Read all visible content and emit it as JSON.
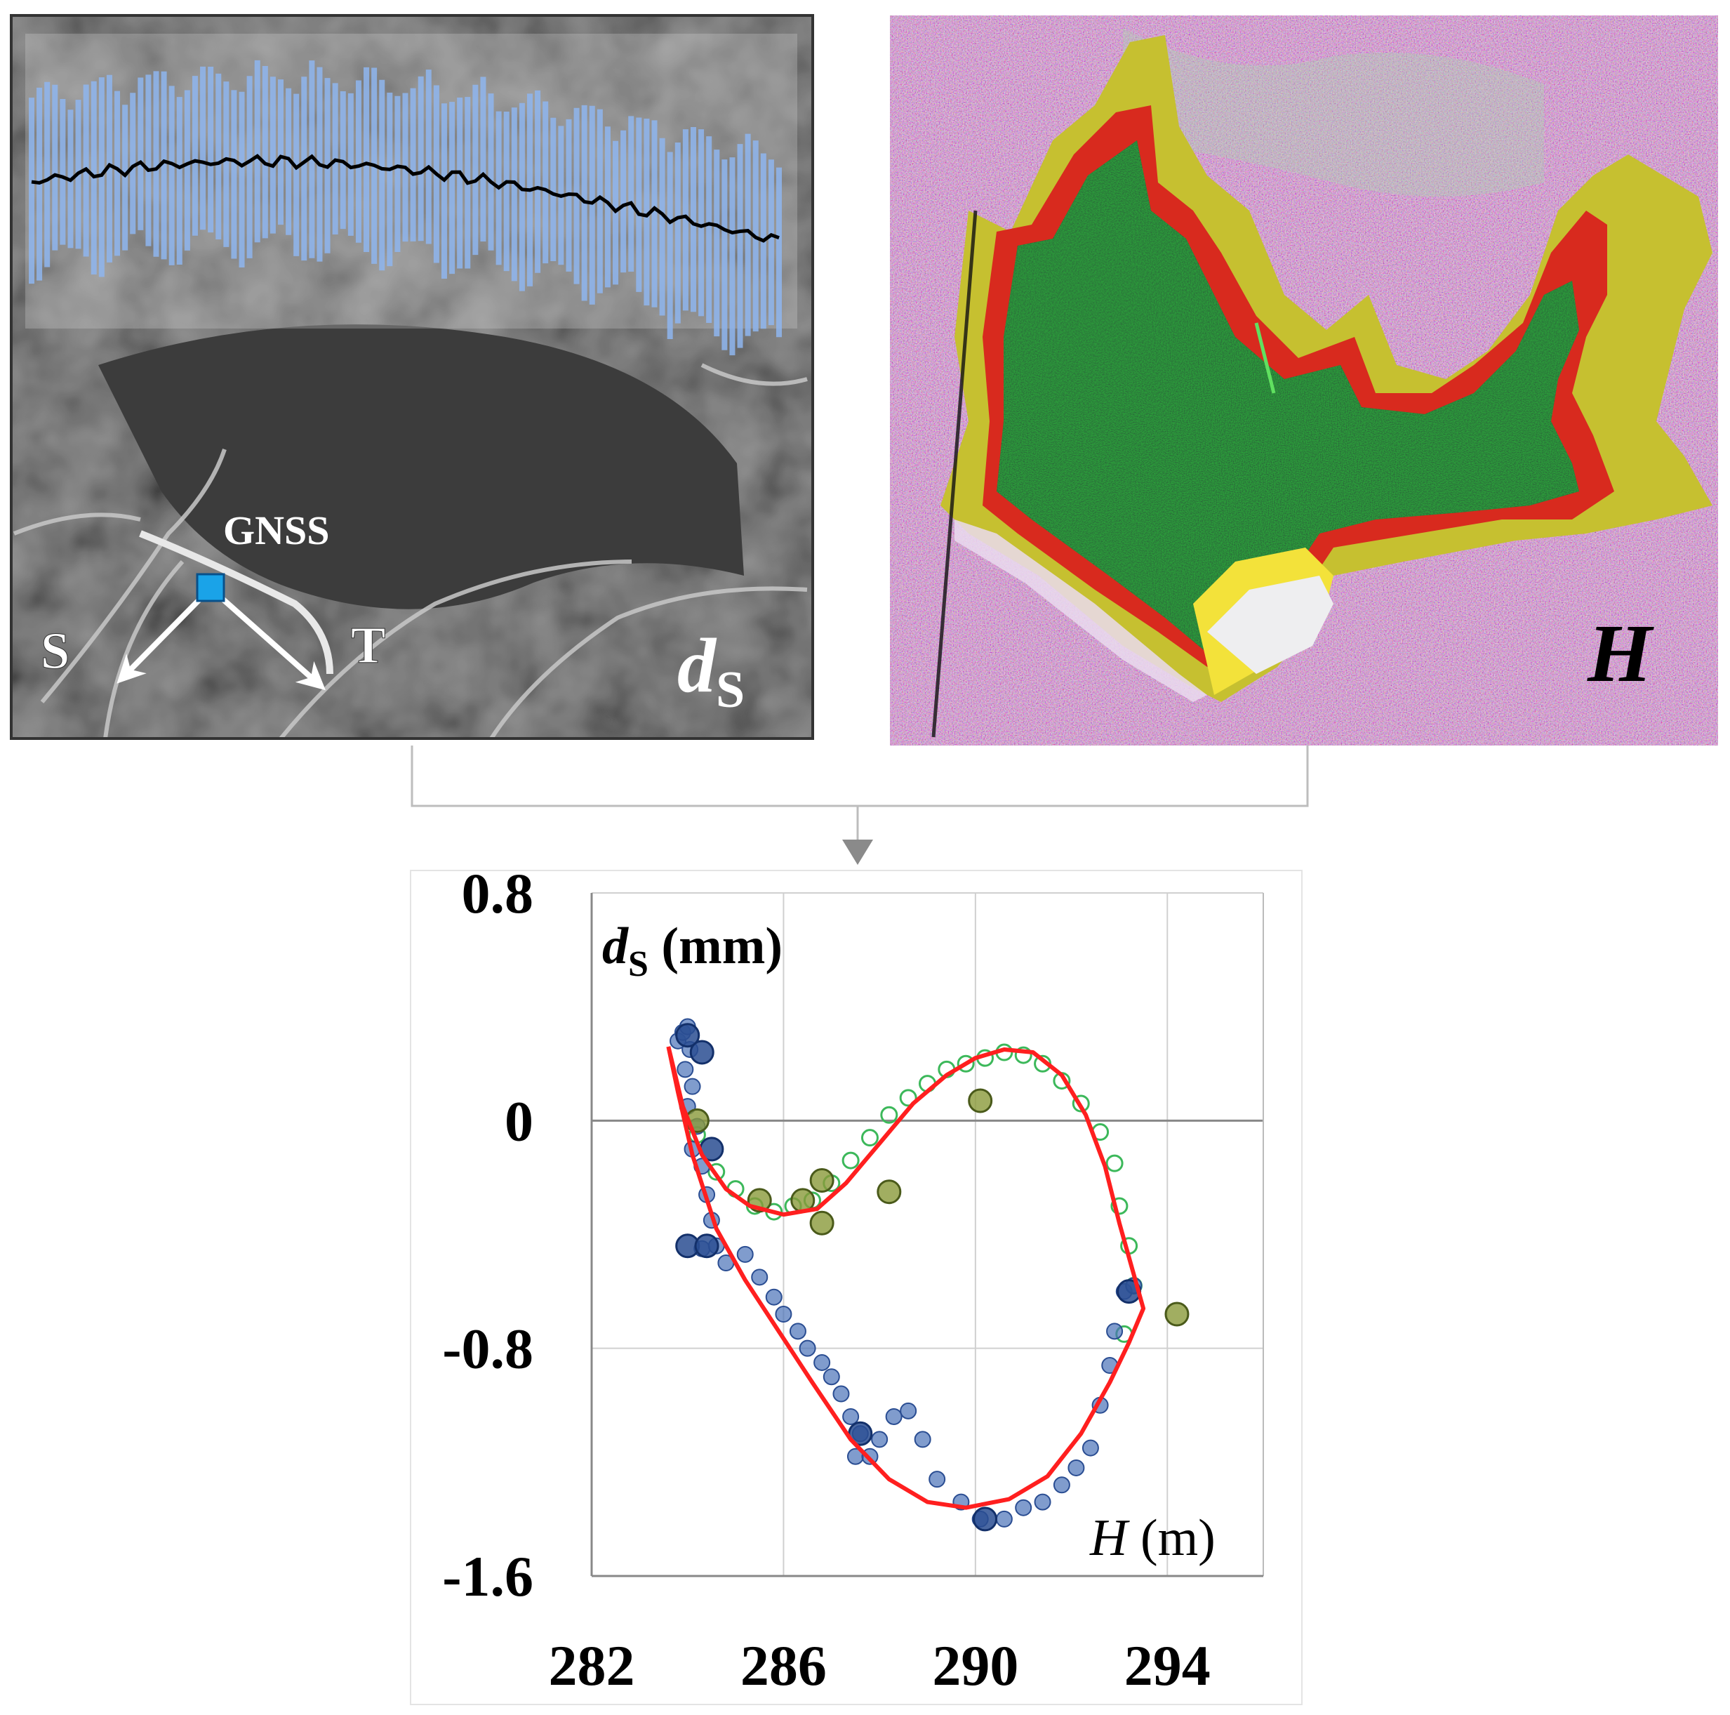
{
  "left_panel": {
    "gnss_label": "GNSS",
    "s_label": "S",
    "t_label": "T",
    "corner_symbol": "d",
    "corner_subscript": "S"
  },
  "right_panel": {
    "corner_symbol": "H"
  },
  "chart": {
    "ylabel_symbol": "d",
    "ylabel_subscript": "S",
    "ylabel_unit": " (mm)",
    "xlabel_symbol": "H",
    "xlabel_unit": " (m)",
    "y_tick_labels": [
      "0.8",
      "0",
      "-0.8",
      "-1.6"
    ],
    "x_tick_labels": [
      "282",
      "286",
      "290",
      "294"
    ]
  },
  "chart_data": {
    "type": "scatter",
    "xlim": [
      282,
      296
    ],
    "ylim": [
      -1.6,
      0.8
    ],
    "x_ticks": [
      282,
      286,
      290,
      294
    ],
    "y_ticks": [
      0.8,
      0,
      -0.8,
      -1.6
    ],
    "grid": true,
    "colors": {
      "blue": "#4a72b8",
      "blue_dark": "#2a4d92",
      "green": "#3cb85a",
      "olive": "#8a9a3a",
      "red": "#ff1f1f"
    },
    "series": [
      {
        "marker": "blue-filled",
        "points": [
          [
            283.8,
            0.28
          ],
          [
            283.9,
            0.31
          ],
          [
            284.0,
            0.33
          ],
          [
            284.05,
            0.25
          ],
          [
            283.95,
            0.18
          ],
          [
            284.1,
            0.12
          ],
          [
            284.0,
            0.05
          ],
          [
            284.2,
            -0.02
          ],
          [
            284.1,
            -0.1
          ],
          [
            284.3,
            -0.16
          ],
          [
            284.4,
            -0.26
          ],
          [
            284.5,
            -0.35
          ],
          [
            284.3,
            -0.45
          ],
          [
            284.6,
            -0.44
          ],
          [
            284.8,
            -0.5
          ],
          [
            285.2,
            -0.47
          ],
          [
            285.5,
            -0.55
          ],
          [
            285.8,
            -0.62
          ],
          [
            286.0,
            -0.68
          ],
          [
            286.3,
            -0.74
          ],
          [
            286.5,
            -0.8
          ],
          [
            286.8,
            -0.85
          ],
          [
            287.0,
            -0.9
          ],
          [
            287.2,
            -0.96
          ],
          [
            287.4,
            -1.04
          ],
          [
            287.6,
            -1.1
          ],
          [
            287.5,
            -1.18
          ],
          [
            287.8,
            -1.18
          ],
          [
            288.0,
            -1.12
          ],
          [
            288.3,
            -1.04
          ],
          [
            288.6,
            -1.02
          ],
          [
            288.9,
            -1.12
          ],
          [
            289.2,
            -1.26
          ],
          [
            289.7,
            -1.34
          ],
          [
            290.1,
            -1.4
          ],
          [
            290.6,
            -1.4
          ],
          [
            291.0,
            -1.36
          ],
          [
            291.4,
            -1.34
          ],
          [
            291.8,
            -1.28
          ],
          [
            292.1,
            -1.22
          ],
          [
            292.4,
            -1.15
          ],
          [
            292.6,
            -1.0
          ],
          [
            292.8,
            -0.86
          ],
          [
            292.9,
            -0.74
          ],
          [
            293.1,
            -0.6
          ],
          [
            293.3,
            -0.58
          ]
        ],
        "large": [
          [
            284.0,
            0.3
          ],
          [
            284.3,
            0.24
          ],
          [
            284.5,
            -0.1
          ],
          [
            284.0,
            -0.44
          ],
          [
            284.4,
            -0.44
          ],
          [
            287.6,
            -1.1
          ],
          [
            290.2,
            -1.4
          ],
          [
            293.2,
            -0.6
          ]
        ]
      },
      {
        "marker": "green-hollow",
        "points": [
          [
            284.2,
            -0.05
          ],
          [
            284.6,
            -0.18
          ],
          [
            285.0,
            -0.24
          ],
          [
            285.4,
            -0.3
          ],
          [
            285.8,
            -0.32
          ],
          [
            286.2,
            -0.3
          ],
          [
            286.6,
            -0.28
          ],
          [
            287.0,
            -0.22
          ],
          [
            287.4,
            -0.14
          ],
          [
            287.8,
            -0.06
          ],
          [
            288.2,
            0.02
          ],
          [
            288.6,
            0.08
          ],
          [
            289.0,
            0.13
          ],
          [
            289.4,
            0.18
          ],
          [
            289.8,
            0.2
          ],
          [
            290.2,
            0.22
          ],
          [
            290.6,
            0.24
          ],
          [
            291.0,
            0.23
          ],
          [
            291.4,
            0.2
          ],
          [
            291.8,
            0.14
          ],
          [
            292.2,
            0.06
          ],
          [
            292.6,
            -0.04
          ],
          [
            292.9,
            -0.15
          ],
          [
            293.0,
            -0.3
          ],
          [
            293.2,
            -0.44
          ],
          [
            293.3,
            -0.58
          ],
          [
            293.1,
            -0.75
          ]
        ],
        "large": [
          [
            284.2,
            0.0
          ],
          [
            285.5,
            -0.28
          ],
          [
            286.4,
            -0.28
          ],
          [
            286.8,
            -0.36
          ],
          [
            286.8,
            -0.21
          ],
          [
            288.2,
            -0.25
          ],
          [
            290.1,
            0.07
          ],
          [
            294.2,
            -0.68
          ]
        ]
      }
    ],
    "curve": [
      [
        283.6,
        0.26
      ],
      [
        283.9,
        0.05
      ],
      [
        284.3,
        -0.12
      ],
      [
        284.8,
        -0.24
      ],
      [
        285.3,
        -0.3
      ],
      [
        286.0,
        -0.33
      ],
      [
        286.7,
        -0.31
      ],
      [
        287.3,
        -0.22
      ],
      [
        288.0,
        -0.08
      ],
      [
        288.7,
        0.06
      ],
      [
        289.4,
        0.16
      ],
      [
        290.0,
        0.22
      ],
      [
        290.6,
        0.25
      ],
      [
        291.2,
        0.24
      ],
      [
        291.8,
        0.16
      ],
      [
        292.3,
        0.02
      ],
      [
        292.7,
        -0.16
      ],
      [
        293.0,
        -0.36
      ],
      [
        293.3,
        -0.54
      ],
      [
        293.5,
        -0.66
      ],
      [
        293.2,
        -0.78
      ],
      [
        292.8,
        -0.92
      ],
      [
        292.2,
        -1.1
      ],
      [
        291.5,
        -1.25
      ],
      [
        290.7,
        -1.33
      ],
      [
        289.8,
        -1.36
      ],
      [
        289.0,
        -1.34
      ],
      [
        288.2,
        -1.26
      ],
      [
        287.4,
        -1.12
      ],
      [
        286.6,
        -0.92
      ],
      [
        285.9,
        -0.74
      ],
      [
        285.2,
        -0.56
      ],
      [
        284.6,
        -0.38
      ],
      [
        284.1,
        -0.12
      ],
      [
        283.8,
        0.1
      ],
      [
        283.6,
        0.26
      ]
    ]
  }
}
